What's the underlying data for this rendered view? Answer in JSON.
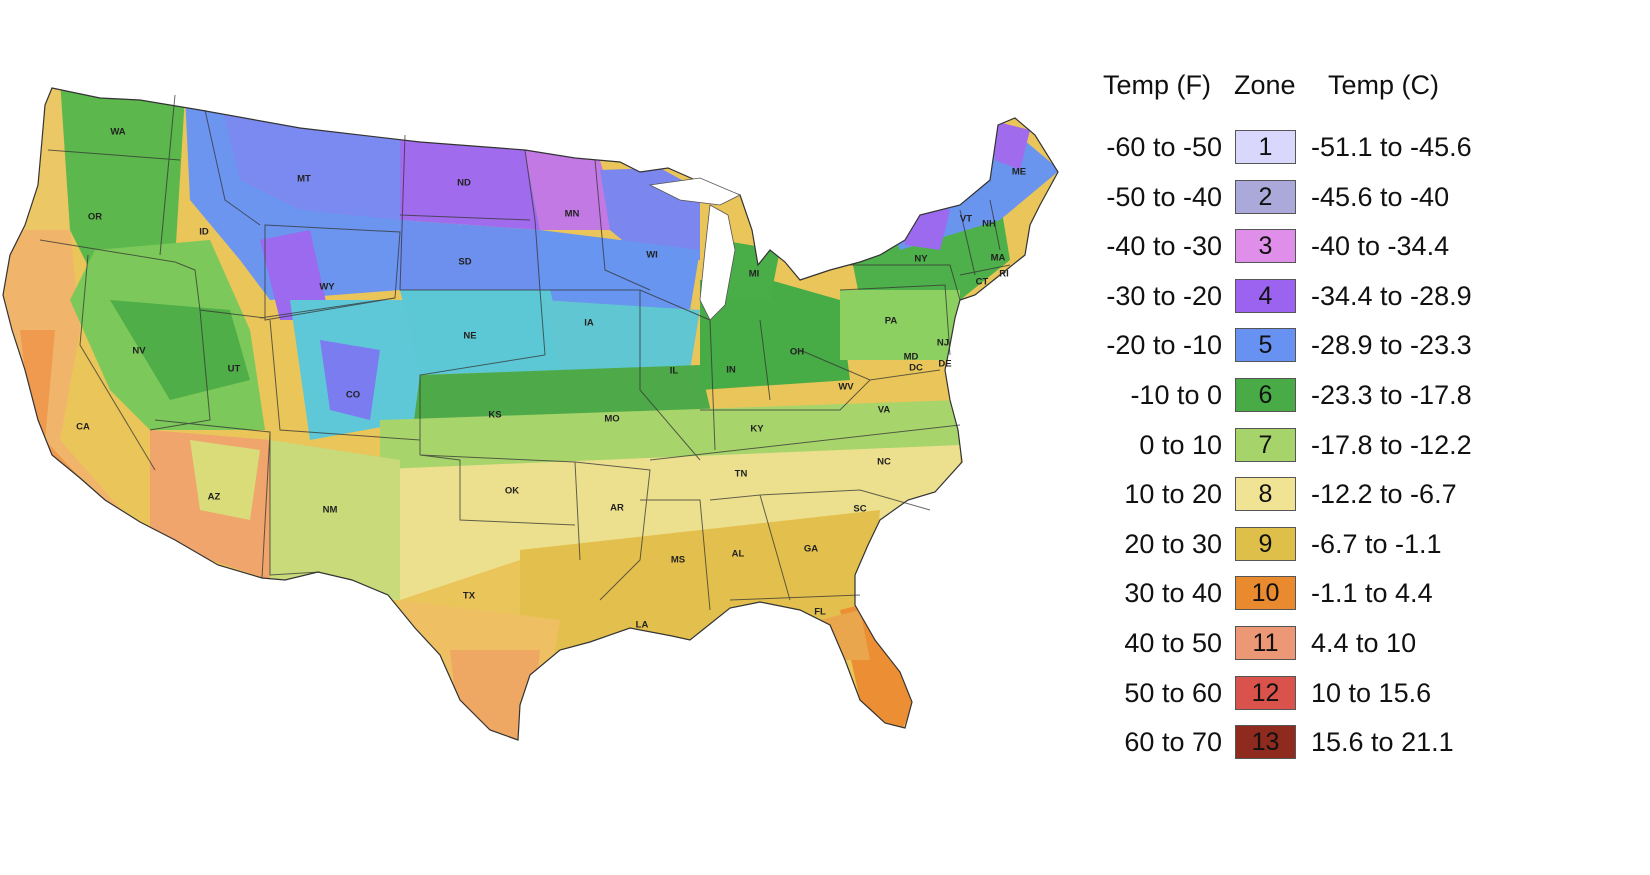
{
  "legend": {
    "headers": {
      "temp_f": "Temp (F)",
      "zone": "Zone",
      "temp_c": "Temp (C)"
    },
    "rows": [
      {
        "f": "-60 to -50",
        "zone": "1",
        "c": "-51.1 to -45.6",
        "color": "#d9d7fb"
      },
      {
        "f": "-50 to -40",
        "zone": "2",
        "c": "-45.6 to -40",
        "color": "#aaa9d9"
      },
      {
        "f": "-40 to -30",
        "zone": "3",
        "c": "-40 to -34.4",
        "color": "#df8ee9"
      },
      {
        "f": "-30 to -20",
        "zone": "4",
        "c": "-34.4 to -28.9",
        "color": "#9b63ef"
      },
      {
        "f": "-20 to -10",
        "zone": "5",
        "c": "-28.9 to -23.3",
        "color": "#6792f1"
      },
      {
        "f": "-10 to 0",
        "zone": "6",
        "c": "-23.3 to -17.8",
        "color": "#48ab46"
      },
      {
        "f": "0 to 10",
        "zone": "7",
        "c": "-17.8 to -12.2",
        "color": "#a6d46a"
      },
      {
        "f": "10 to 20",
        "zone": "8",
        "c": "-12.2 to -6.7",
        "color": "#f1e394"
      },
      {
        "f": "20 to 30",
        "zone": "9",
        "c": "-6.7 to -1.1",
        "color": "#ddbf4a"
      },
      {
        "f": "30 to 40",
        "zone": "10",
        "c": "-1.1 to 4.4",
        "color": "#e88a2d"
      },
      {
        "f": "40 to 50",
        "zone": "11",
        "c": "4.4 to 10",
        "color": "#ec9775"
      },
      {
        "f": "50 to 60",
        "zone": "12",
        "c": "10 to 15.6",
        "color": "#d9534c"
      },
      {
        "f": "60 to 70",
        "zone": "13",
        "c": "15.6 to 21.1",
        "color": "#8e2a1e"
      }
    ]
  },
  "state_labels": [
    "WA",
    "OR",
    "CA",
    "ID",
    "NV",
    "MT",
    "WY",
    "UT",
    "AZ",
    "CO",
    "NM",
    "ND",
    "SD",
    "NE",
    "KS",
    "OK",
    "TX",
    "MN",
    "IA",
    "MO",
    "AR",
    "LA",
    "WI",
    "IL",
    "MI",
    "IN",
    "OH",
    "KY",
    "TN",
    "MS",
    "AL",
    "GA",
    "FL",
    "SC",
    "NC",
    "VA",
    "WV",
    "PA",
    "NY",
    "ME",
    "VT",
    "NH",
    "MA",
    "CT",
    "RI",
    "NJ",
    "MD",
    "DE",
    "DC"
  ]
}
